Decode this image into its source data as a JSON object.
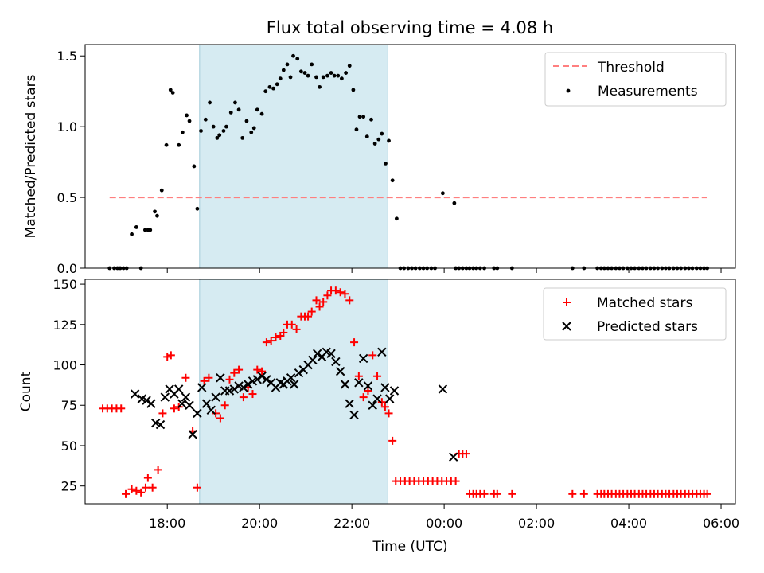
{
  "title": "Flux total observing time = 4.08 h",
  "chart_data": [
    {
      "type": "scatter",
      "panel": "top",
      "ylabel": "Matched/Predicted stars",
      "ylim": [
        0,
        1.58
      ],
      "xlim": [
        16.22,
        30.31
      ],
      "yticks": [
        0,
        0.5,
        1.0,
        1.5
      ],
      "yticklabels": [
        "0.0",
        "0.5",
        "1.0",
        "1.5"
      ],
      "highlight_span": [
        18.7,
        22.78
      ],
      "legend": {
        "placement": "top-right",
        "entries": [
          "Threshold",
          "Measurements"
        ]
      },
      "threshold": {
        "name": "Threshold",
        "value": 0.5,
        "x_range": [
          16.75,
          29.7
        ],
        "color": "#ff7f7f"
      },
      "measurements": {
        "name": "Measurements",
        "color": "#000000",
        "x": [
          16.75,
          16.85,
          16.92,
          16.98,
          17.05,
          17.12,
          17.23,
          17.33,
          17.43,
          17.52,
          17.58,
          17.63,
          17.73,
          17.78,
          17.88,
          17.98,
          18.07,
          18.12,
          18.25,
          18.33,
          18.42,
          18.48,
          18.58,
          18.65,
          18.73,
          18.83,
          18.92,
          19.0,
          19.08,
          19.13,
          19.22,
          19.28,
          19.38,
          19.47,
          19.55,
          19.63,
          19.72,
          19.82,
          19.88,
          19.95,
          20.05,
          20.13,
          20.22,
          20.3,
          20.38,
          20.45,
          20.52,
          20.6,
          20.67,
          20.73,
          20.82,
          20.9,
          20.98,
          21.05,
          21.13,
          21.23,
          21.3,
          21.38,
          21.47,
          21.55,
          21.62,
          21.7,
          21.78,
          21.87,
          21.95,
          22.03,
          22.1,
          22.17,
          22.25,
          22.33,
          22.42,
          22.5,
          22.58,
          22.65,
          22.73,
          22.8,
          22.88,
          22.97,
          23.05,
          23.13,
          23.22,
          23.3,
          23.38,
          23.47,
          23.55,
          23.63,
          23.72,
          23.8,
          23.97,
          24.22,
          24.25,
          24.32,
          24.4,
          24.48,
          24.55,
          24.63,
          24.7,
          24.78,
          24.87,
          25.08,
          25.15,
          25.47,
          26.78,
          27.03,
          27.32,
          27.4,
          27.47,
          27.55,
          27.63,
          27.72,
          27.8,
          27.88,
          27.97,
          28.05,
          28.13,
          28.22,
          28.3,
          28.38,
          28.47,
          28.55,
          28.63,
          28.72,
          28.8,
          28.88,
          28.97,
          29.05,
          29.13,
          29.22,
          29.3,
          29.38,
          29.47,
          29.55,
          29.63,
          29.7
        ],
        "y": [
          0,
          0,
          0,
          0,
          0,
          0,
          0.24,
          0.29,
          0,
          0.27,
          0.27,
          0.27,
          0.4,
          0.37,
          0.55,
          0.87,
          1.26,
          1.24,
          0.87,
          0.96,
          1.08,
          1.04,
          0.72,
          0.42,
          0.97,
          1.05,
          1.17,
          1.0,
          0.92,
          0.94,
          0.97,
          1.0,
          1.1,
          1.17,
          1.12,
          0.92,
          1.04,
          0.96,
          0.99,
          1.12,
          1.09,
          1.25,
          1.28,
          1.27,
          1.3,
          1.34,
          1.4,
          1.44,
          1.35,
          1.5,
          1.48,
          1.39,
          1.38,
          1.36,
          1.44,
          1.35,
          1.28,
          1.35,
          1.36,
          1.38,
          1.36,
          1.36,
          1.34,
          1.38,
          1.43,
          1.26,
          0.98,
          1.07,
          1.07,
          0.93,
          1.05,
          0.88,
          0.91,
          0.95,
          0.74,
          0.9,
          0.62,
          0.35,
          0,
          0,
          0,
          0,
          0,
          0,
          0,
          0,
          0,
          0,
          0.53,
          0.46,
          0,
          0,
          0,
          0,
          0,
          0,
          0,
          0,
          0,
          0,
          0,
          0,
          0,
          0,
          0,
          0,
          0,
          0,
          0,
          0,
          0,
          0,
          0,
          0,
          0,
          0,
          0,
          0,
          0,
          0,
          0,
          0,
          0,
          0,
          0,
          0,
          0,
          0,
          0,
          0,
          0,
          0,
          0,
          0
        ]
      }
    },
    {
      "type": "scatter",
      "panel": "bottom",
      "xlabel": "Time (UTC)",
      "ylabel": "Count",
      "ylim": [
        14,
        153
      ],
      "xlim": [
        16.22,
        30.31
      ],
      "yticks": [
        25,
        50,
        75,
        100,
        125,
        150
      ],
      "xticks": [
        18,
        20,
        22,
        24,
        26,
        28,
        30
      ],
      "xticklabels": [
        "18:00",
        "20:00",
        "22:00",
        "00:00",
        "02:00",
        "04:00",
        "06:00"
      ],
      "highlight_span": [
        18.7,
        22.78
      ],
      "legend": {
        "placement": "top-right",
        "entries": [
          "Matched stars",
          "Predicted stars"
        ]
      },
      "matched": {
        "name": "Matched stars",
        "color": "#ff0000",
        "x": [
          16.6,
          16.7,
          16.8,
          16.9,
          17.0,
          17.1,
          17.23,
          17.33,
          17.43,
          17.53,
          17.58,
          17.68,
          17.8,
          17.9,
          18.0,
          18.08,
          18.15,
          18.25,
          18.4,
          18.55,
          18.65,
          18.8,
          18.9,
          19.05,
          19.15,
          19.25,
          19.35,
          19.45,
          19.55,
          19.65,
          19.75,
          19.85,
          19.95,
          20.05,
          20.15,
          20.25,
          20.35,
          20.45,
          20.52,
          20.6,
          20.7,
          20.8,
          20.9,
          20.98,
          21.05,
          21.13,
          21.23,
          21.3,
          21.38,
          21.47,
          21.55,
          21.65,
          21.75,
          21.85,
          21.95,
          22.05,
          22.15,
          22.25,
          22.35,
          22.45,
          22.55,
          22.65,
          22.72,
          22.8,
          22.88,
          22.95,
          23.05,
          23.15,
          23.25,
          23.35,
          23.45,
          23.55,
          23.65,
          23.75,
          23.85,
          23.95,
          24.05,
          24.15,
          24.25,
          24.32,
          24.4,
          24.48,
          24.55,
          24.63,
          24.7,
          24.78,
          24.87,
          25.08,
          25.15,
          25.47,
          26.78,
          27.03,
          27.32,
          27.4,
          27.47,
          27.55,
          27.63,
          27.72,
          27.8,
          27.88,
          27.97,
          28.05,
          28.13,
          28.22,
          28.3,
          28.38,
          28.47,
          28.55,
          28.63,
          28.72,
          28.8,
          28.88,
          28.97,
          29.05,
          29.13,
          29.22,
          29.3,
          29.38,
          29.47,
          29.55,
          29.63,
          29.7
        ],
        "y": [
          73,
          73,
          73,
          73,
          73,
          20,
          23,
          22,
          21,
          24,
          30,
          24,
          35,
          70,
          105,
          106,
          73,
          74,
          92,
          59,
          24,
          90,
          92,
          70,
          67,
          75,
          91,
          95,
          97,
          80,
          86,
          82,
          97,
          96,
          114,
          115,
          117,
          118,
          120,
          125,
          125,
          122,
          130,
          130,
          130,
          133,
          140,
          136,
          139,
          143,
          146,
          146,
          145,
          144,
          140,
          114,
          93,
          80,
          84,
          106,
          93,
          77,
          74,
          70,
          53,
          28,
          28,
          28,
          28,
          28,
          28,
          28,
          28,
          28,
          28,
          28,
          28,
          28,
          28,
          45,
          45,
          45,
          20,
          20,
          20,
          20,
          20,
          20,
          20,
          20,
          20,
          20,
          20,
          20,
          20,
          20,
          20,
          20,
          20,
          20,
          20,
          20,
          20,
          20,
          20,
          20,
          20,
          20,
          20,
          20,
          20,
          20,
          20,
          20,
          20,
          20,
          20,
          20,
          20,
          20,
          20,
          20
        ]
      },
      "predicted": {
        "name": "Predicted stars",
        "color": "#000000",
        "x": [
          17.3,
          17.45,
          17.55,
          17.65,
          17.75,
          17.85,
          17.95,
          18.05,
          18.15,
          18.25,
          18.32,
          18.4,
          18.48,
          18.55,
          18.65,
          18.75,
          18.85,
          18.95,
          19.05,
          19.15,
          19.25,
          19.35,
          19.45,
          19.55,
          19.65,
          19.75,
          19.85,
          19.95,
          20.05,
          20.15,
          20.25,
          20.35,
          20.45,
          20.52,
          20.6,
          20.68,
          20.75,
          20.85,
          20.95,
          21.05,
          21.15,
          21.25,
          21.35,
          21.45,
          21.55,
          21.65,
          21.75,
          21.85,
          21.95,
          22.05,
          22.15,
          22.25,
          22.35,
          22.45,
          22.55,
          22.65,
          22.72,
          22.82,
          22.92,
          23.97,
          24.2
        ],
        "y": [
          82,
          79,
          78,
          76,
          64,
          63,
          80,
          85,
          82,
          85,
          76,
          80,
          75,
          57,
          70,
          86,
          76,
          72,
          80,
          92,
          84,
          84,
          85,
          87,
          86,
          88,
          90,
          91,
          93,
          91,
          89,
          86,
          89,
          88,
          90,
          92,
          88,
          95,
          97,
          100,
          103,
          107,
          105,
          108,
          107,
          102,
          96,
          88,
          76,
          69,
          89,
          104,
          87,
          75,
          79,
          108,
          86,
          79,
          84,
          85,
          43
        ]
      }
    }
  ]
}
